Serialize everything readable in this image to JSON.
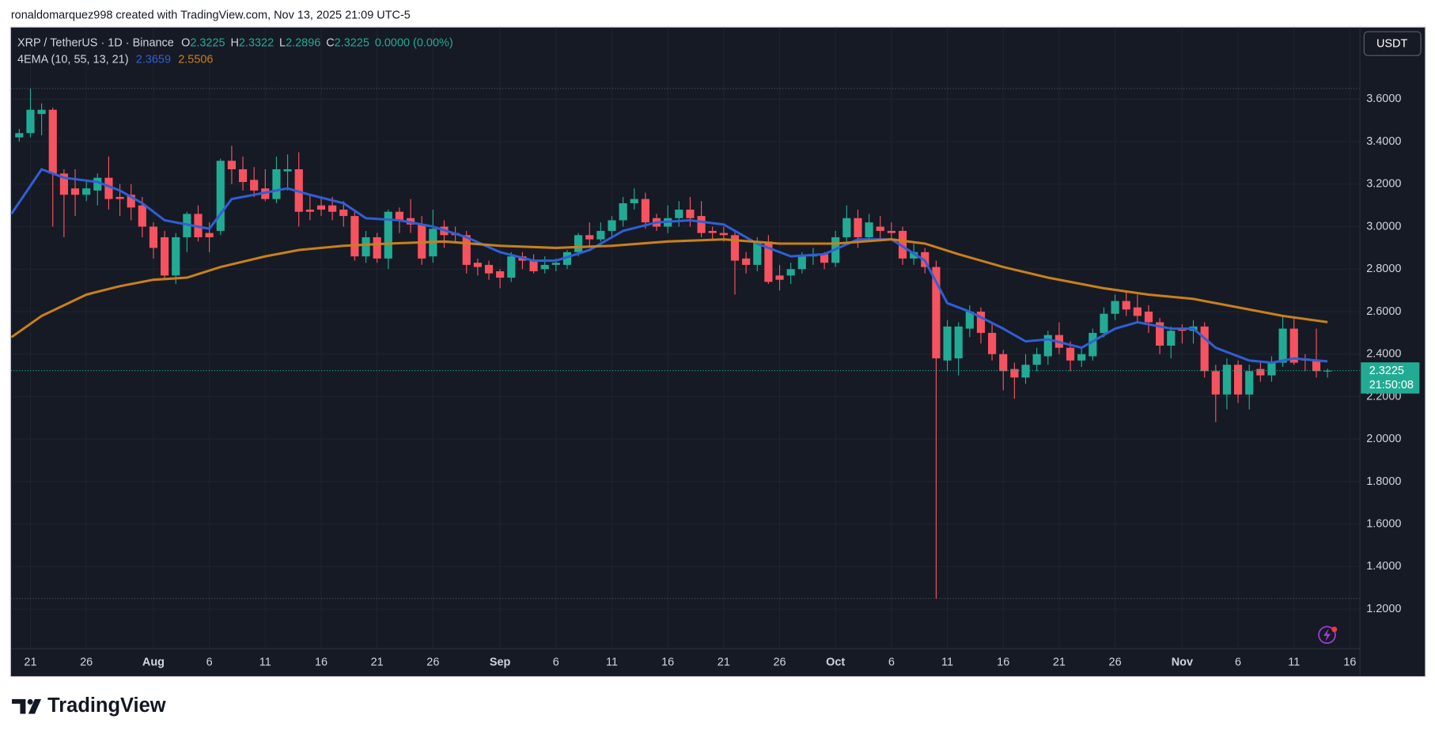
{
  "header": {
    "credit": "ronaldomarquez998 created with TradingView.com, Nov 13, 2025 21:09 UTC-5"
  },
  "toolbar": {
    "currency": "USDT"
  },
  "footer": {
    "logo": "TradingView"
  },
  "chart_data": {
    "type": "candlestick",
    "title": "XRP / TetherUS · 1D · Binance",
    "ohlc_letters": [
      "O",
      "H",
      "L",
      "C"
    ],
    "change_label": "0.0000 (0.00%)",
    "indicator": {
      "name": "4EMA (10, 55, 13, 21)"
    },
    "countdown": "21:50:08",
    "up_color": "#22ab94",
    "down_color": "#f7525f",
    "grid": true,
    "candles": {
      "open": [
        3.42,
        3.44,
        3.53,
        3.55,
        3.25,
        3.18,
        3.15,
        3.17,
        3.23,
        3.14,
        3.15,
        3.1,
        3.0,
        2.95,
        2.77,
        2.95,
        3.06,
        2.97,
        2.98,
        3.31,
        3.27,
        3.22,
        3.18,
        3.13,
        3.26,
        3.27,
        3.08,
        3.1,
        3.1,
        3.08,
        3.05,
        2.86,
        2.95,
        2.85,
        3.07,
        3.04,
        3.01,
        2.86,
        3.0,
        2.97,
        2.96,
        2.83,
        2.82,
        2.79,
        2.76,
        2.86,
        2.84,
        2.8,
        2.82,
        2.82,
        2.88,
        2.96,
        2.94,
        2.98,
        3.03,
        3.11,
        3.13,
        3.04,
        3.0,
        3.04,
        3.08,
        3.05,
        2.98,
        2.97,
        2.96,
        2.85,
        2.82,
        2.93,
        2.77,
        2.77,
        2.8,
        2.86,
        2.87,
        2.83,
        2.95,
        3.04,
        2.95,
        3.0,
        2.98,
        2.98,
        2.85,
        2.88,
        2.81,
        2.37,
        2.38,
        2.52,
        2.6,
        2.5,
        2.4,
        2.33,
        2.29,
        2.35,
        2.39,
        2.49,
        2.43,
        2.37,
        2.39,
        2.5,
        2.59,
        2.65,
        2.62,
        2.6,
        2.55,
        2.44,
        2.52,
        2.51,
        2.53,
        2.32,
        2.21,
        2.35,
        2.21,
        2.33,
        2.3,
        2.36,
        2.52,
        2.38,
        2.37,
        2.3225
      ],
      "high": [
        3.46,
        3.65,
        3.58,
        3.56,
        3.27,
        3.27,
        3.22,
        3.25,
        3.33,
        3.2,
        3.2,
        3.14,
        3.02,
        2.98,
        2.97,
        3.07,
        3.1,
        3.02,
        3.32,
        3.38,
        3.33,
        3.28,
        3.27,
        3.33,
        3.34,
        3.35,
        3.15,
        3.14,
        3.14,
        3.12,
        3.08,
        2.98,
        2.97,
        3.08,
        3.09,
        3.13,
        3.05,
        3.08,
        3.03,
        3.0,
        2.98,
        2.85,
        2.84,
        2.8,
        2.88,
        2.88,
        2.87,
        2.86,
        2.85,
        2.89,
        2.97,
        3.02,
        3.02,
        3.05,
        3.14,
        3.18,
        3.16,
        3.06,
        3.1,
        3.12,
        3.14,
        3.12,
        3.0,
        3.0,
        2.98,
        2.88,
        2.95,
        2.96,
        2.82,
        2.83,
        2.88,
        2.9,
        2.88,
        2.98,
        3.1,
        3.08,
        3.06,
        3.05,
        3.02,
        3.0,
        2.92,
        2.9,
        2.84,
        2.56,
        2.55,
        2.63,
        2.62,
        2.54,
        2.42,
        2.36,
        2.4,
        2.43,
        2.51,
        2.55,
        2.46,
        2.43,
        2.52,
        2.62,
        2.68,
        2.7,
        2.68,
        2.63,
        2.57,
        2.53,
        2.54,
        2.56,
        2.55,
        2.35,
        2.38,
        2.37,
        2.35,
        2.36,
        2.39,
        2.58,
        2.57,
        2.4,
        2.52,
        2.3322
      ],
      "low": [
        3.4,
        3.42,
        3.43,
        3.0,
        2.95,
        3.05,
        3.12,
        3.1,
        3.08,
        3.05,
        3.03,
        2.95,
        2.85,
        2.75,
        2.73,
        2.88,
        2.93,
        2.88,
        2.96,
        3.2,
        3.17,
        3.14,
        3.12,
        3.11,
        3.17,
        3.0,
        3.03,
        3.05,
        3.03,
        3.0,
        2.84,
        2.83,
        2.83,
        2.8,
        2.97,
        2.97,
        2.82,
        2.83,
        2.9,
        2.92,
        2.78,
        2.77,
        2.75,
        2.71,
        2.74,
        2.8,
        2.78,
        2.78,
        2.79,
        2.8,
        2.86,
        2.91,
        2.93,
        2.95,
        3.0,
        3.08,
        2.99,
        2.98,
        2.97,
        3.0,
        3.0,
        2.95,
        2.94,
        2.93,
        2.68,
        2.78,
        2.79,
        2.73,
        2.7,
        2.73,
        2.78,
        2.82,
        2.8,
        2.81,
        2.93,
        2.9,
        2.93,
        2.93,
        2.94,
        2.82,
        2.82,
        2.78,
        1.25,
        2.32,
        2.3,
        2.48,
        2.45,
        2.37,
        2.23,
        2.19,
        2.26,
        2.32,
        2.35,
        2.4,
        2.32,
        2.34,
        2.37,
        2.48,
        2.56,
        2.58,
        2.55,
        2.5,
        2.4,
        2.38,
        2.45,
        2.45,
        2.29,
        2.08,
        2.14,
        2.17,
        2.14,
        2.27,
        2.27,
        2.34,
        2.35,
        2.32,
        2.29,
        2.2896
      ],
      "close": [
        3.44,
        3.55,
        3.55,
        3.25,
        3.15,
        3.15,
        3.18,
        3.23,
        3.13,
        3.13,
        3.09,
        3.0,
        2.9,
        2.77,
        2.95,
        3.06,
        2.95,
        2.95,
        3.31,
        3.27,
        3.21,
        3.17,
        3.13,
        3.27,
        3.27,
        3.07,
        3.07,
        3.08,
        3.07,
        3.05,
        2.86,
        2.95,
        2.85,
        3.07,
        3.03,
        3.01,
        2.85,
        2.99,
        2.96,
        2.96,
        2.82,
        2.81,
        2.78,
        2.76,
        2.86,
        2.84,
        2.79,
        2.82,
        2.83,
        2.88,
        2.96,
        2.94,
        2.98,
        3.03,
        3.11,
        3.13,
        3.02,
        3.0,
        3.04,
        3.08,
        3.04,
        2.97,
        2.97,
        2.96,
        2.84,
        2.82,
        2.93,
        2.74,
        2.75,
        2.8,
        2.86,
        2.87,
        2.83,
        2.95,
        3.04,
        2.95,
        3.02,
        2.98,
        2.97,
        2.85,
        2.88,
        2.81,
        2.38,
        2.53,
        2.53,
        2.6,
        2.5,
        2.4,
        2.32,
        2.29,
        2.35,
        2.4,
        2.49,
        2.43,
        2.37,
        2.4,
        2.5,
        2.59,
        2.65,
        2.61,
        2.58,
        2.55,
        2.44,
        2.51,
        2.51,
        2.53,
        2.32,
        2.21,
        2.35,
        2.21,
        2.32,
        2.3,
        2.36,
        2.52,
        2.36,
        2.37,
        2.32,
        2.3225
      ]
    },
    "series": [
      {
        "color": "#2f5fd6",
        "x": [
          -0.7,
          2,
          4,
          7,
          9,
          11,
          13,
          15,
          17,
          19,
          21,
          24,
          26,
          29,
          31,
          34,
          37,
          40,
          43,
          46,
          48,
          51,
          54,
          57,
          60,
          63,
          66,
          69,
          72,
          75,
          78,
          81,
          83,
          85,
          88,
          90,
          92,
          95,
          98,
          100,
          103,
          105,
          107,
          110,
          112,
          114,
          116,
          117
        ],
        "values": [
          3.06,
          3.27,
          3.23,
          3.21,
          3.17,
          3.11,
          3.03,
          3.01,
          2.99,
          3.13,
          3.15,
          3.18,
          3.15,
          3.11,
          3.04,
          3.03,
          3.0,
          2.95,
          2.88,
          2.84,
          2.84,
          2.89,
          2.98,
          3.02,
          3.03,
          3.01,
          2.92,
          2.86,
          2.87,
          2.94,
          2.94,
          2.84,
          2.64,
          2.6,
          2.52,
          2.46,
          2.47,
          2.43,
          2.52,
          2.55,
          2.52,
          2.52,
          2.43,
          2.37,
          2.36,
          2.38,
          2.37,
          2.3659
        ]
      },
      {
        "color": "#c9801a",
        "x": [
          -0.7,
          2,
          6,
          9,
          12,
          15,
          18,
          22,
          25,
          29,
          33,
          38,
          43,
          48,
          53,
          58,
          63,
          68,
          73,
          78,
          81,
          84,
          88,
          92,
          97,
          101,
          105,
          109,
          113,
          117
        ],
        "values": [
          2.48,
          2.58,
          2.68,
          2.72,
          2.75,
          2.76,
          2.81,
          2.86,
          2.89,
          2.91,
          2.92,
          2.93,
          2.91,
          2.9,
          2.91,
          2.93,
          2.94,
          2.92,
          2.92,
          2.94,
          2.92,
          2.87,
          2.81,
          2.76,
          2.71,
          2.68,
          2.66,
          2.62,
          2.58,
          2.5506
        ]
      }
    ],
    "xlim": [
      -0.74,
      119.9
    ],
    "xticks": [
      {
        "value": 1,
        "label": "21"
      },
      {
        "value": 6,
        "label": "26"
      },
      {
        "value": 12,
        "label": "Aug"
      },
      {
        "value": 17,
        "label": "6"
      },
      {
        "value": 22,
        "label": "11"
      },
      {
        "value": 27,
        "label": "16"
      },
      {
        "value": 32,
        "label": "21"
      },
      {
        "value": 37,
        "label": "26"
      },
      {
        "value": 43,
        "label": "Sep"
      },
      {
        "value": 48,
        "label": "6"
      },
      {
        "value": 53,
        "label": "11"
      },
      {
        "value": 58,
        "label": "16"
      },
      {
        "value": 63,
        "label": "21"
      },
      {
        "value": 68,
        "label": "26"
      },
      {
        "value": 73,
        "label": "Oct"
      },
      {
        "value": 78,
        "label": "6"
      },
      {
        "value": 83,
        "label": "11"
      },
      {
        "value": 88,
        "label": "16"
      },
      {
        "value": 93,
        "label": "21"
      },
      {
        "value": 98,
        "label": "26"
      },
      {
        "value": 104,
        "label": "Nov"
      },
      {
        "value": 109,
        "label": "6"
      },
      {
        "value": 114,
        "label": "11"
      },
      {
        "value": 119,
        "label": "16"
      }
    ],
    "ylim": [
      1.014,
      3.937
    ],
    "yticks": [
      {
        "value": 1.2,
        "label": "1.2000"
      },
      {
        "value": 1.4,
        "label": "1.4000"
      },
      {
        "value": 1.6,
        "label": "1.6000"
      },
      {
        "value": 1.8,
        "label": "1.8000"
      },
      {
        "value": 2.0,
        "label": "2.0000"
      },
      {
        "value": 2.2,
        "label": "2.2000"
      },
      {
        "value": 2.4,
        "label": "2.4000"
      },
      {
        "value": 2.6,
        "label": "2.6000"
      },
      {
        "value": 2.8,
        "label": "2.8000"
      },
      {
        "value": 3.0,
        "label": "3.0000"
      },
      {
        "value": 3.2,
        "label": "3.2000"
      },
      {
        "value": 3.4,
        "label": "3.4000"
      },
      {
        "value": 3.6,
        "label": "3.6000"
      }
    ]
  }
}
